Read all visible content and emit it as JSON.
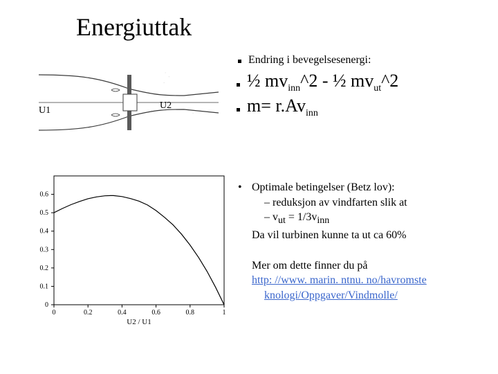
{
  "title": "Energiuttak",
  "upper": {
    "line1": "Endring i bevegelsesenergi:",
    "eq1_a": "½ mv",
    "eq1_sub1": "inn",
    "eq1_b": "^2 - ½ mv",
    "eq1_sub2": "ut",
    "eq1_c": "^2",
    "eq2_a": "m= r.Av",
    "eq2_sub": "inn",
    "diagram": {
      "u1_label": "U1",
      "u2_label": "U2",
      "line_color": "#3a3a3a",
      "fill_color": "#5a5a5a"
    }
  },
  "lower": {
    "opt_head": "Optimale betingelser (Betz lov):",
    "opt_l1": "reduksjon av vindfarten slik at",
    "opt_l2_a": "v",
    "opt_l2_sub1": "ut",
    "opt_l2_b": " = 1/3v",
    "opt_l2_sub2": "inn",
    "opt_tail": "Da vil turbinen kunne ta ut ca 60%",
    "more_intro": "Mer om dette finner du på",
    "link_line1": "http: //www. marin. ntnu. no/havromste",
    "link_line2": "knologi/Oppgaver/Vindmolle/"
  },
  "chart": {
    "type": "line",
    "xlim": [
      0,
      1
    ],
    "ylim": [
      0,
      0.7
    ],
    "xticks": [
      0,
      0.2,
      0.4,
      0.6,
      0.8,
      1
    ],
    "yticks": [
      0,
      0.1,
      0.2,
      0.3,
      0.4,
      0.5,
      0.6
    ],
    "ytick_labels": [
      "0",
      "0.1",
      "0.2",
      "0.3",
      "0.4",
      "0.5",
      "0.6"
    ],
    "xtick_labels": [
      "0",
      "0.2",
      "0.4",
      "0.6",
      "0.8",
      "1"
    ],
    "xlabel": "U2 / U1",
    "line_color": "#000000",
    "axis_color": "#000000",
    "background_color": "#ffffff",
    "line_width": 1.2,
    "font_size_ticks": 10,
    "font_size_label": 11,
    "data": [
      [
        0.0,
        0.5
      ],
      [
        0.05,
        0.523
      ],
      [
        0.1,
        0.544
      ],
      [
        0.15,
        0.561
      ],
      [
        0.2,
        0.576
      ],
      [
        0.25,
        0.586
      ],
      [
        0.3,
        0.592
      ],
      [
        0.3333,
        0.593
      ],
      [
        0.35,
        0.593
      ],
      [
        0.4,
        0.588
      ],
      [
        0.45,
        0.577
      ],
      [
        0.5,
        0.563
      ],
      [
        0.55,
        0.542
      ],
      [
        0.6,
        0.512
      ],
      [
        0.65,
        0.475
      ],
      [
        0.7,
        0.434
      ],
      [
        0.75,
        0.383
      ],
      [
        0.8,
        0.324
      ],
      [
        0.85,
        0.257
      ],
      [
        0.9,
        0.181
      ],
      [
        0.95,
        0.095
      ],
      [
        1.0,
        0.0
      ]
    ]
  }
}
